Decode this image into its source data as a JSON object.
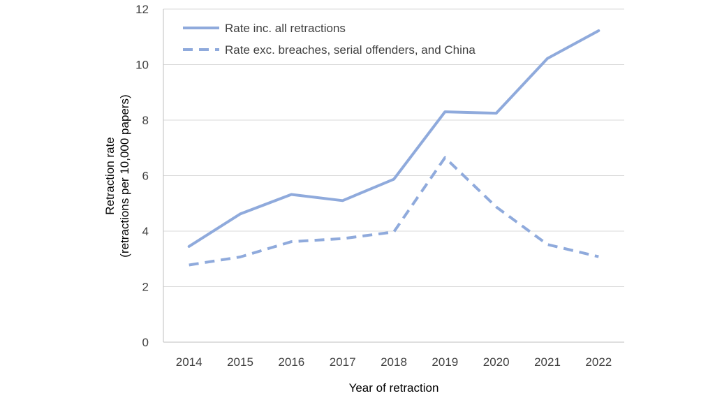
{
  "chart_data": {
    "type": "line",
    "x": [
      "2014",
      "2015",
      "2016",
      "2017",
      "2018",
      "2019",
      "2020",
      "2021",
      "2022"
    ],
    "series": [
      {
        "name": "Rate inc. all retractions",
        "values": [
          3.45,
          4.62,
          5.32,
          5.1,
          5.87,
          8.3,
          8.25,
          10.22,
          11.22
        ],
        "style": "solid",
        "color": "#8faadc"
      },
      {
        "name": "Rate exc. breaches, serial offenders, and China",
        "values": [
          2.78,
          3.07,
          3.62,
          3.73,
          3.97,
          6.65,
          4.87,
          3.52,
          3.08
        ],
        "style": "dashed",
        "color": "#8faadc"
      }
    ],
    "xlabel": "Year of retraction",
    "ylabel_line1": "Retraction rate",
    "ylabel_line2": "(retractions per 10,000 papers)",
    "ylim": [
      0,
      12
    ],
    "yticks": [
      "0",
      "2",
      "4",
      "6",
      "8",
      "10",
      "12"
    ],
    "grid": true,
    "legend_position": "top-left"
  }
}
